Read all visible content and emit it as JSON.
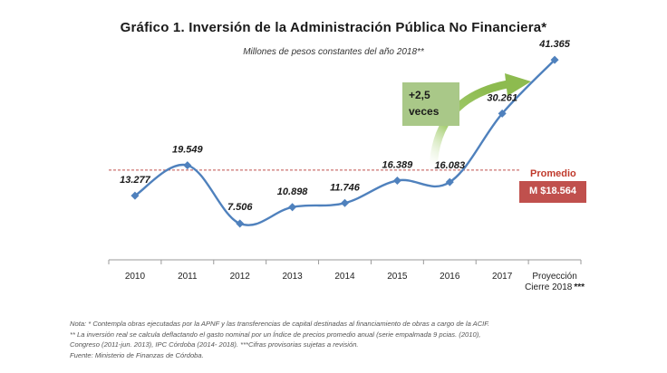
{
  "title": "Gráfico 1. Inversión de la Administración Pública No Financiera*",
  "subtitle": "Millones de pesos constantes del año 2018**",
  "callout": {
    "line1": "+2,5",
    "line2": "veces"
  },
  "average": {
    "label": "Promedio",
    "value_text": "M $18.564",
    "value": 18.564
  },
  "notes": [
    "Nota: * Contempla obras ejecutadas por la APNF y las transferencias de capital destinadas al financiamiento de obras a cargo de la ACIF.",
    "** La inversión real se calcula deflactando el gasto nominal por un Índice de precios promedio anual (serie empalmada 9 pcias. (2010),",
    "Congreso (2011-jun. 2013), IPC Córdoba (2014- 2018). ***Cifras provisorias sujetas a revisión.",
    "Fuente: Ministerio de Finanzas de Córdoba."
  ],
  "colors": {
    "line": "#4f81bd",
    "average_line": "#c0504d",
    "callout": "#a9c888",
    "arrow": "#92c050"
  },
  "chart_data": {
    "type": "line",
    "categories": [
      "2010",
      "2011",
      "2012",
      "2013",
      "2014",
      "2015",
      "2016",
      "2017",
      "Proyección Cierre 2018"
    ],
    "category_suffix_last": "***",
    "values": [
      13.277,
      19.549,
      7.506,
      10.898,
      11.746,
      16.389,
      16.083,
      30.261,
      41.365
    ],
    "labels": [
      "13.277",
      "19.549",
      "7.506",
      "10.898",
      "11.746",
      "16.389",
      "16.083",
      "30.261",
      "41.365"
    ],
    "ylim": [
      0,
      50
    ],
    "reference_line": 18.564,
    "grid": false
  }
}
